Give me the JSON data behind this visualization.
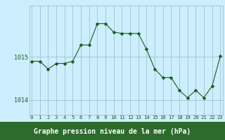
{
  "hours": [
    0,
    1,
    2,
    3,
    4,
    5,
    6,
    7,
    8,
    9,
    10,
    11,
    12,
    13,
    14,
    15,
    16,
    17,
    18,
    19,
    20,
    21,
    22,
    23
  ],
  "pressure": [
    1014.9,
    1014.9,
    1014.72,
    1014.85,
    1014.85,
    1014.9,
    1015.28,
    1015.28,
    1015.78,
    1015.78,
    1015.58,
    1015.55,
    1015.55,
    1015.55,
    1015.18,
    1014.72,
    1014.52,
    1014.52,
    1014.22,
    1014.05,
    1014.22,
    1014.05,
    1014.32,
    1015.02
  ],
  "line_color": "#1a5c1a",
  "marker_color": "#1a5c1a",
  "bg_color": "#cceeff",
  "grid_color": "#99bbbb",
  "xlabel": "Graphe pression niveau de la mer (hPa)",
  "xlabel_fontsize": 7,
  "ytick_labels": [
    "1014",
    "1015"
  ],
  "ytick_values": [
    1014.0,
    1015.0
  ],
  "ylim": [
    1013.65,
    1016.2
  ],
  "xlim": [
    -0.3,
    23.3
  ],
  "xtick_fontsize": 5.2,
  "ytick_fontsize": 6.0,
  "bottom_bar_color": "#2d6b2d",
  "marker_size": 2.5,
  "line_width": 0.8
}
